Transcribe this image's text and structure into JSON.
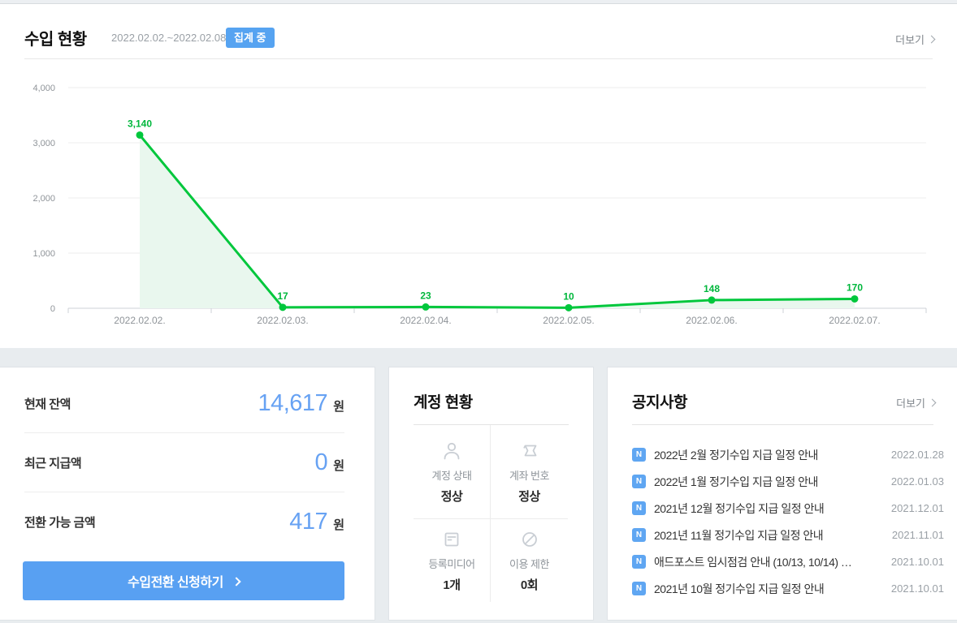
{
  "income": {
    "title": "수입 현황",
    "date_range": "2022.02.02.~2022.02.08.",
    "badge": "집계 중",
    "more_label": "더보기"
  },
  "chart_data": {
    "type": "area",
    "x": [
      "2022.02.02.",
      "2022.02.03.",
      "2022.02.04.",
      "2022.02.05.",
      "2022.02.06.",
      "2022.02.07."
    ],
    "values": [
      3140,
      17,
      23,
      10,
      148,
      170
    ],
    "point_labels": [
      "3,140",
      "17",
      "23",
      "10",
      "148",
      "170"
    ],
    "yticks": [
      0,
      1000,
      2000,
      3000,
      4000
    ],
    "ytick_labels": [
      "0",
      "1,000",
      "2,000",
      "3,000",
      "4,000"
    ],
    "ylim": [
      0,
      4000
    ],
    "grid": "horizontal",
    "legend": "none",
    "line_color": "#00c73c",
    "fill_color": "#e9f7ee",
    "label_color": "#00b73c"
  },
  "balance": {
    "rows": [
      {
        "label": "현재 잔액",
        "value": "14,617",
        "unit": "원"
      },
      {
        "label": "최근 지급액",
        "value": "0",
        "unit": "원"
      },
      {
        "label": "전환 가능 금액",
        "value": "417",
        "unit": "원"
      }
    ],
    "button_label": "수입전환 신청하기"
  },
  "account": {
    "title": "계정 현황",
    "cells": [
      {
        "icon": "user-icon",
        "label": "계정 상태",
        "value": "정상"
      },
      {
        "icon": "bankbook-icon",
        "label": "계좌 번호",
        "value": "정상"
      },
      {
        "icon": "media-document-icon",
        "label": "등록미디어",
        "value": "1개"
      },
      {
        "icon": "block-icon",
        "label": "이용 제한",
        "value": "0회"
      }
    ]
  },
  "notices": {
    "title": "공지사항",
    "more_label": "더보기",
    "new_badge": "N",
    "items": [
      {
        "title": "2022년 2월 정기수입 지급 일정 안내",
        "date": "2022.01.28"
      },
      {
        "title": "2022년 1월 정기수입 지급 일정 안내",
        "date": "2022.01.03"
      },
      {
        "title": "2021년 12월 정기수입 지급 일정 안내",
        "date": "2021.12.01"
      },
      {
        "title": "2021년 11월 정기수입 지급 일정 안내",
        "date": "2021.11.01"
      },
      {
        "title": "애드포스트 임시점검 안내 (10/13, 10/14) …",
        "date": "2021.10.01"
      },
      {
        "title": "2021년 10월 정기수입 지급 일정 안내",
        "date": "2021.10.01"
      }
    ]
  },
  "colors": {
    "accent_blue": "#58a0f2",
    "badge_blue": "#56a3f1",
    "notice_badge_blue": "#5fa6f2",
    "value_blue": "#67a2f3",
    "chart_green": "#00c73c",
    "chart_fill_green": "#e9f7ee",
    "section_bg_gray": "#e8ecef"
  }
}
